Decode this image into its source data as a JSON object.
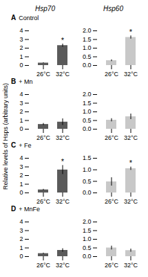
{
  "chart_data": [
    {
      "type": "bar",
      "title": "Hsp70",
      "ylabel": "Relative levels of Hsps (arbitrary units)",
      "categories": [
        "26°C",
        "32°C"
      ],
      "values": [
        0.28,
        2.3
      ],
      "errors": [
        0.04,
        0.18
      ],
      "color": "#5a5a5a",
      "ylim": [
        0,
        4.0
      ],
      "yticks": [
        0,
        1,
        2,
        3,
        4
      ],
      "annotations": [
        {
          "text": "A"
        },
        {
          "text": "Control"
        },
        {
          "text": "*",
          "x": "32°C"
        }
      ]
    },
    {
      "type": "bar",
      "title": "Hsp60",
      "categories": [
        "26°C",
        "32°C"
      ],
      "values": [
        0.28,
        1.62
      ],
      "errors": [
        0.05,
        0.09
      ],
      "color": "#c8c8c8",
      "ylim": [
        0,
        2.0
      ],
      "yticks": [
        {
          "value": 0,
          "label": "0.0"
        },
        {
          "value": 0.5,
          "label": "0.5"
        },
        {
          "value": 1,
          "label": "1.0"
        },
        {
          "value": 1.5,
          "label": "1.5"
        },
        {
          "value": 2,
          "label": "2.0"
        }
      ],
      "annotations": [
        {
          "text": "*",
          "x": "32°C"
        }
      ]
    },
    {
      "type": "bar",
      "categories": [
        "26°C",
        "32°C"
      ],
      "values": [
        0.55,
        0.82
      ],
      "errors": [
        0.12,
        0.38
      ],
      "color": "#5a5a5a",
      "ylim": [
        0,
        4.0
      ],
      "yticks": [
        0,
        1,
        2,
        3,
        4
      ],
      "annotations": [
        {
          "text": "B"
        },
        {
          "text": "+ Mn"
        }
      ]
    },
    {
      "type": "bar",
      "categories": [
        "26°C",
        "32°C"
      ],
      "values": [
        0.52,
        0.72
      ],
      "errors": [
        0.09,
        0.16
      ],
      "color": "#c8c8c8",
      "ylim": [
        0,
        2.0
      ],
      "yticks": [
        {
          "value": 0,
          "label": "0.0"
        },
        {
          "value": 0.5,
          "label": "0.5"
        },
        {
          "value": 1,
          "label": "1.0"
        },
        {
          "value": 1.5,
          "label": "1.5"
        },
        {
          "value": 2,
          "label": "2.0"
        }
      ]
    },
    {
      "type": "bar",
      "categories": [
        "26°C",
        "32°C"
      ],
      "values": [
        0.35,
        2.65
      ],
      "errors": [
        0.07,
        0.52
      ],
      "color": "#5a5a5a",
      "ylim": [
        0,
        4.0
      ],
      "yticks": [
        0,
        1,
        2,
        3,
        4
      ],
      "annotations": [
        {
          "text": "C"
        },
        {
          "text": "+ Fe"
        },
        {
          "text": "*",
          "x": "32°C"
        }
      ]
    },
    {
      "type": "bar",
      "categories": [
        "26°C",
        "32°C"
      ],
      "values": [
        0.48,
        1.05
      ],
      "errors": [
        0.18,
        0.07
      ],
      "color": "#c8c8c8",
      "ylim": [
        0,
        1.5
      ],
      "yticks": [
        {
          "value": 0,
          "label": "0.0"
        },
        {
          "value": 0.5,
          "label": "0.5"
        },
        {
          "value": 1,
          "label": "1.0"
        },
        {
          "value": 1.5,
          "label": "1.5"
        }
      ],
      "annotations": [
        {
          "text": "*",
          "x": "32°C"
        }
      ]
    },
    {
      "type": "bar",
      "categories": [
        "26°C",
        "32°C"
      ],
      "values": [
        0.35,
        0.72
      ],
      "errors": [
        0.06,
        0.2
      ],
      "color": "#5a5a5a",
      "ylim": [
        0,
        4.0
      ],
      "yticks": [
        0,
        1,
        2,
        3,
        4
      ],
      "annotations": [
        {
          "text": "D"
        },
        {
          "text": "+ MnFe"
        }
      ]
    },
    {
      "type": "bar",
      "categories": [
        "26°C",
        "32°C"
      ],
      "values": [
        0.5,
        0.35
      ],
      "errors": [
        0.11,
        0.09
      ],
      "color": "#c8c8c8",
      "ylim": [
        0,
        2.0
      ],
      "yticks": [
        {
          "value": 0,
          "label": "0.0"
        },
        {
          "value": 0.5,
          "label": "0.5"
        },
        {
          "value": 1,
          "label": "1.0"
        },
        {
          "value": 1.5,
          "label": "1.5"
        },
        {
          "value": 2,
          "label": "2.0"
        }
      ]
    }
  ]
}
